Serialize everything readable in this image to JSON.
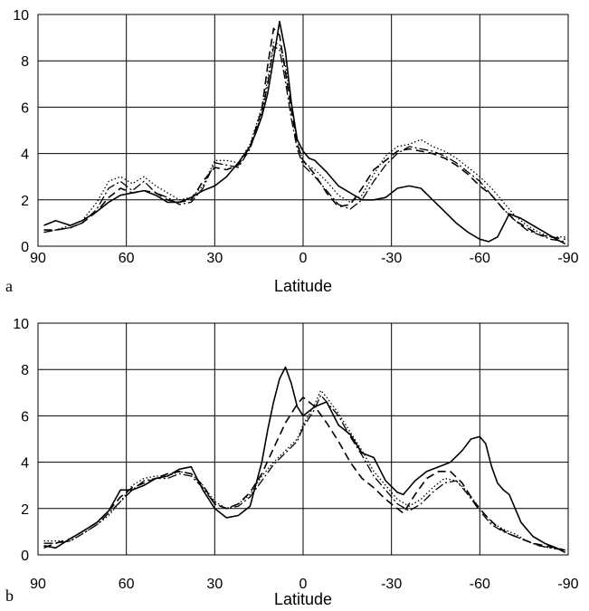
{
  "chart_data": [
    {
      "type": "line",
      "panel_label": "a",
      "xlabel": "Latitude",
      "ylabel": "",
      "xlim": [
        90,
        -90
      ],
      "ylim": [
        0,
        10
      ],
      "xticks": [
        90,
        60,
        30,
        0,
        -30,
        -60,
        -90
      ],
      "xtick_labels": [
        "90",
        "60",
        "30",
        "0",
        "-30",
        "-60",
        "-90"
      ],
      "yticks": [
        0,
        2,
        4,
        6,
        8,
        10
      ],
      "ytick_labels": [
        "0",
        "2",
        "4",
        "6",
        "8",
        "10"
      ],
      "grid": true,
      "series": [
        {
          "style": "solid",
          "x": [
            88,
            84,
            79,
            75,
            70,
            66,
            62,
            58,
            54,
            50,
            46,
            42,
            38,
            34,
            30,
            26,
            22,
            18,
            16,
            14,
            12,
            10,
            8,
            6,
            4,
            2,
            0,
            -2,
            -4,
            -8,
            -12,
            -16,
            -20,
            -24,
            -28,
            -32,
            -36,
            -40,
            -44,
            -48,
            -52,
            -56,
            -60,
            -63,
            -66,
            -70,
            -74,
            -78,
            -82,
            -86,
            -89
          ],
          "y": [
            0.9,
            1.1,
            0.9,
            1.1,
            1.5,
            1.9,
            2.2,
            2.3,
            2.4,
            2.2,
            1.9,
            1.9,
            2.1,
            2.4,
            2.6,
            3.0,
            3.6,
            4.3,
            4.9,
            5.6,
            6.6,
            8.1,
            9.7,
            8.4,
            6.2,
            4.6,
            4.1,
            3.8,
            3.7,
            3.2,
            2.6,
            2.3,
            2.0,
            2.0,
            2.1,
            2.5,
            2.6,
            2.5,
            2.0,
            1.5,
            1.0,
            0.6,
            0.3,
            0.2,
            0.4,
            1.4,
            1.2,
            0.9,
            0.6,
            0.3,
            0.1
          ]
        },
        {
          "style": "dashed",
          "x": [
            88,
            84,
            79,
            75,
            70,
            66,
            62,
            58,
            54,
            50,
            46,
            42,
            38,
            34,
            30,
            26,
            22,
            18,
            14,
            12,
            10,
            8,
            6,
            4,
            2,
            0,
            -4,
            -8,
            -12,
            -16,
            -20,
            -24,
            -28,
            -32,
            -36,
            -40,
            -44,
            -48,
            -52,
            -56,
            -60,
            -64,
            -68,
            -72,
            -76,
            -80,
            -84,
            -89
          ],
          "y": [
            0.7,
            0.7,
            0.8,
            1.0,
            1.5,
            2.1,
            2.5,
            2.3,
            2.4,
            2.3,
            2.0,
            1.9,
            2.0,
            2.8,
            3.4,
            3.3,
            3.5,
            4.3,
            5.9,
            7.8,
            9.4,
            9.1,
            7.5,
            5.9,
            4.4,
            3.7,
            3.1,
            2.3,
            1.7,
            1.8,
            2.5,
            3.3,
            3.7,
            4.1,
            4.2,
            4.1,
            4.0,
            3.8,
            3.5,
            3.1,
            2.6,
            2.2,
            1.6,
            1.1,
            0.8,
            0.5,
            0.4,
            0.3
          ]
        },
        {
          "style": "dotted",
          "x": [
            88,
            84,
            79,
            75,
            70,
            66,
            62,
            58,
            54,
            50,
            46,
            42,
            38,
            34,
            30,
            26,
            22,
            18,
            14,
            12,
            10,
            8,
            6,
            4,
            2,
            0,
            -4,
            -8,
            -12,
            -16,
            -20,
            -24,
            -28,
            -32,
            -36,
            -40,
            -44,
            -48,
            -52,
            -56,
            -60,
            -64,
            -68,
            -72,
            -76,
            -80,
            -84,
            -89
          ],
          "y": [
            0.6,
            0.7,
            0.9,
            1.1,
            1.9,
            2.8,
            3.0,
            2.7,
            3.0,
            2.6,
            2.3,
            2.0,
            2.1,
            2.6,
            3.7,
            3.7,
            3.6,
            4.4,
            6.0,
            7.2,
            8.8,
            8.7,
            7.8,
            6.2,
            4.6,
            3.6,
            3.3,
            2.8,
            2.2,
            1.9,
            2.2,
            3.1,
            3.9,
            4.3,
            4.4,
            4.6,
            4.3,
            4.1,
            3.8,
            3.4,
            3.0,
            2.5,
            1.9,
            1.3,
            0.9,
            0.6,
            0.4,
            0.4
          ]
        },
        {
          "style": "dashdot",
          "x": [
            88,
            84,
            79,
            75,
            70,
            66,
            62,
            58,
            54,
            50,
            46,
            42,
            38,
            34,
            30,
            26,
            22,
            18,
            14,
            12,
            10,
            8,
            6,
            4,
            2,
            0,
            -4,
            -8,
            -12,
            -16,
            -20,
            -24,
            -28,
            -32,
            -36,
            -40,
            -44,
            -48,
            -52,
            -56,
            -60,
            -64,
            -68,
            -72,
            -76,
            -80,
            -84,
            -89
          ],
          "y": [
            0.6,
            0.7,
            0.8,
            1.0,
            1.6,
            2.5,
            2.8,
            2.4,
            2.8,
            2.3,
            2.1,
            1.8,
            1.9,
            2.5,
            3.6,
            3.5,
            3.4,
            4.2,
            5.7,
            7.0,
            8.6,
            8.5,
            7.1,
            5.5,
            4.2,
            3.5,
            3.0,
            2.4,
            1.8,
            1.6,
            2.0,
            2.8,
            3.5,
            4.0,
            4.3,
            4.2,
            4.1,
            3.9,
            3.6,
            3.2,
            2.8,
            2.2,
            1.6,
            1.1,
            0.7,
            0.5,
            0.3,
            0.2
          ]
        }
      ]
    },
    {
      "type": "line",
      "panel_label": "b",
      "xlabel": "Latitude",
      "ylabel": "",
      "xlim": [
        90,
        -90
      ],
      "ylim": [
        0,
        10
      ],
      "xticks": [
        90,
        60,
        30,
        0,
        -30,
        -60,
        -90
      ],
      "xtick_labels": [
        "90",
        "60",
        "30",
        "0",
        "-30",
        "-60",
        "-90"
      ],
      "yticks": [
        0,
        2,
        4,
        6,
        8,
        10
      ],
      "ytick_labels": [
        "0",
        "2",
        "4",
        "6",
        "8",
        "10"
      ],
      "grid": true,
      "series": [
        {
          "style": "solid",
          "x": [
            88,
            84,
            79,
            75,
            70,
            66,
            62,
            58,
            54,
            50,
            46,
            42,
            38,
            34,
            30,
            26,
            22,
            18,
            14,
            12,
            10,
            8,
            6,
            4,
            2,
            0,
            -4,
            -8,
            -12,
            -16,
            -20,
            -24,
            -28,
            -32,
            -34,
            -38,
            -42,
            -46,
            -50,
            -54,
            -57,
            -60,
            -62,
            -64,
            -66,
            -68,
            -70,
            -74,
            -78,
            -82,
            -86,
            -89
          ],
          "y": [
            0.4,
            0.3,
            0.7,
            1.0,
            1.4,
            1.9,
            2.8,
            2.8,
            3.0,
            3.3,
            3.4,
            3.7,
            3.8,
            2.8,
            2.0,
            1.6,
            1.7,
            2.1,
            4.0,
            5.4,
            6.6,
            7.6,
            8.1,
            7.4,
            6.4,
            6.0,
            6.4,
            6.6,
            5.6,
            5.2,
            4.4,
            4.2,
            3.2,
            2.7,
            2.6,
            3.2,
            3.6,
            3.8,
            4.0,
            4.5,
            5.0,
            5.1,
            4.8,
            3.8,
            3.1,
            2.8,
            2.6,
            1.4,
            0.8,
            0.5,
            0.3,
            0.1
          ]
        },
        {
          "style": "dashed",
          "x": [
            88,
            84,
            79,
            75,
            70,
            66,
            62,
            58,
            54,
            50,
            46,
            42,
            38,
            34,
            30,
            26,
            22,
            18,
            14,
            10,
            6,
            2,
            0,
            -4,
            -8,
            -12,
            -16,
            -20,
            -24,
            -28,
            -32,
            -34,
            -38,
            -42,
            -46,
            -50,
            -54,
            -58,
            -62,
            -66,
            -70,
            -74,
            -78,
            -82,
            -86,
            -89
          ],
          "y": [
            0.3,
            0.5,
            0.7,
            1.0,
            1.4,
            1.9,
            2.5,
            2.9,
            3.1,
            3.3,
            3.5,
            3.6,
            3.5,
            3.0,
            2.2,
            2.0,
            2.2,
            2.7,
            3.5,
            4.6,
            5.7,
            6.5,
            6.8,
            6.4,
            5.7,
            4.9,
            4.0,
            3.3,
            2.9,
            2.4,
            2.0,
            1.8,
            2.6,
            3.3,
            3.6,
            3.6,
            3.1,
            2.3,
            1.7,
            1.2,
            0.9,
            0.7,
            0.5,
            0.4,
            0.3,
            0.2
          ]
        },
        {
          "style": "dotted",
          "x": [
            88,
            84,
            79,
            75,
            70,
            66,
            62,
            58,
            54,
            50,
            46,
            42,
            38,
            34,
            30,
            26,
            22,
            18,
            14,
            10,
            6,
            2,
            0,
            -4,
            -6,
            -8,
            -12,
            -16,
            -20,
            -24,
            -28,
            -32,
            -36,
            -40,
            -44,
            -48,
            -52,
            -56,
            -60,
            -64,
            -68,
            -72,
            -76,
            -80,
            -84,
            -89
          ],
          "y": [
            0.6,
            0.6,
            0.6,
            0.9,
            1.3,
            1.7,
            2.3,
            3.0,
            3.3,
            3.4,
            3.4,
            3.6,
            3.5,
            3.0,
            2.3,
            2.0,
            2.2,
            2.6,
            3.4,
            4.0,
            4.5,
            5.0,
            5.6,
            6.5,
            7.1,
            6.8,
            6.1,
            5.3,
            4.5,
            3.6,
            3.0,
            2.4,
            2.1,
            2.4,
            2.9,
            3.3,
            3.2,
            2.7,
            2.0,
            1.4,
            1.1,
            0.9,
            0.6,
            0.4,
            0.3,
            0.2
          ]
        },
        {
          "style": "dashdot",
          "x": [
            88,
            84,
            79,
            75,
            70,
            66,
            62,
            58,
            54,
            50,
            46,
            42,
            38,
            34,
            30,
            26,
            22,
            18,
            14,
            10,
            6,
            2,
            0,
            -4,
            -6,
            -8,
            -12,
            -16,
            -20,
            -24,
            -28,
            -32,
            -36,
            -40,
            -44,
            -48,
            -52,
            -56,
            -60,
            -64,
            -68,
            -72,
            -76,
            -80,
            -84,
            -89
          ],
          "y": [
            0.5,
            0.5,
            0.6,
            0.9,
            1.3,
            1.8,
            2.3,
            2.8,
            3.2,
            3.3,
            3.3,
            3.5,
            3.4,
            2.9,
            2.2,
            2.0,
            2.1,
            2.5,
            3.2,
            3.9,
            4.4,
            4.9,
            5.5,
            6.3,
            6.9,
            6.6,
            6.0,
            5.1,
            4.3,
            3.4,
            2.8,
            2.2,
            1.9,
            2.2,
            2.7,
            3.1,
            3.2,
            2.6,
            1.9,
            1.3,
            1.0,
            0.8,
            0.6,
            0.4,
            0.3,
            0.2
          ]
        }
      ]
    }
  ]
}
